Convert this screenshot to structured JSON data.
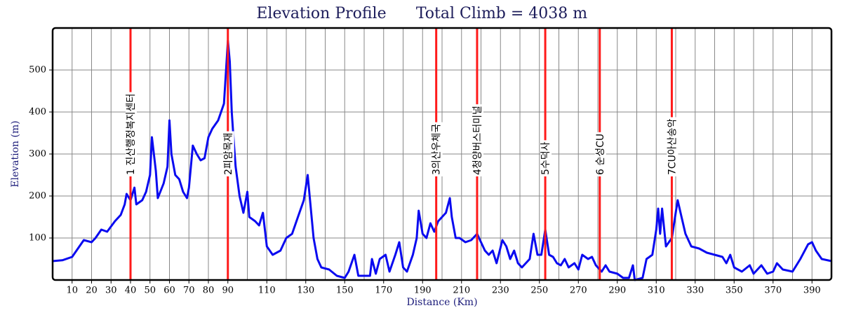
{
  "chart_data": {
    "type": "line",
    "title": "Elevation Profile",
    "subtitle": "Total Climb = 4038 m",
    "x_label": "Distance (Km)",
    "y_label": "Elevation (m)",
    "x": [
      0,
      5,
      10,
      13,
      16,
      20,
      22,
      25,
      28,
      32,
      35,
      37,
      38,
      40,
      42,
      43,
      46,
      48,
      50,
      51,
      53,
      54,
      57,
      59,
      60,
      61,
      63,
      65,
      67,
      69,
      70,
      72,
      74,
      76,
      78,
      80,
      82,
      85,
      88,
      90,
      91,
      92,
      93,
      94,
      96,
      98,
      100,
      101,
      104,
      106,
      108,
      110,
      113,
      117,
      120,
      123,
      126,
      129,
      131,
      132,
      134,
      136,
      138,
      142,
      146,
      150,
      152,
      155,
      157,
      163,
      164,
      166,
      168,
      171,
      173,
      176,
      178,
      180,
      182,
      185,
      187,
      188,
      190,
      192,
      194,
      196,
      198,
      200,
      202,
      204,
      205,
      207,
      209,
      212,
      215,
      218,
      220,
      222,
      224,
      226,
      228,
      231,
      233,
      235,
      237,
      239,
      241,
      245,
      247,
      249,
      251,
      253,
      255,
      257,
      259,
      261,
      263,
      265,
      268,
      270,
      272,
      275,
      277,
      279,
      282,
      284,
      286,
      290,
      293,
      296,
      298,
      299,
      303,
      305,
      308,
      310,
      311,
      312,
      313,
      315,
      318,
      320,
      321,
      323,
      325,
      328,
      332,
      336,
      340,
      344,
      346,
      348,
      350,
      354,
      358,
      360,
      364,
      367,
      370,
      372,
      375,
      380,
      384,
      388,
      390,
      392,
      395,
      400
    ],
    "values": [
      45,
      47,
      55,
      75,
      95,
      90,
      100,
      120,
      115,
      140,
      155,
      180,
      205,
      190,
      220,
      180,
      190,
      210,
      250,
      340,
      260,
      195,
      230,
      270,
      380,
      300,
      250,
      240,
      210,
      195,
      220,
      320,
      300,
      285,
      290,
      340,
      360,
      380,
      420,
      570,
      520,
      400,
      330,
      270,
      200,
      160,
      210,
      150,
      140,
      130,
      160,
      80,
      60,
      70,
      100,
      110,
      150,
      190,
      250,
      200,
      100,
      50,
      30,
      25,
      10,
      5,
      20,
      60,
      10,
      10,
      50,
      15,
      50,
      60,
      20,
      60,
      90,
      30,
      20,
      60,
      100,
      165,
      110,
      100,
      135,
      115,
      140,
      150,
      160,
      195,
      150,
      100,
      100,
      90,
      95,
      110,
      90,
      70,
      60,
      70,
      40,
      95,
      80,
      50,
      70,
      40,
      30,
      50,
      110,
      60,
      60,
      120,
      60,
      55,
      40,
      35,
      50,
      30,
      40,
      25,
      60,
      50,
      55,
      35,
      20,
      35,
      20,
      15,
      5,
      5,
      35,
      0,
      5,
      50,
      60,
      120,
      170,
      110,
      170,
      80,
      100,
      160,
      190,
      150,
      110,
      80,
      75,
      65,
      60,
      55,
      40,
      60,
      30,
      20,
      35,
      15,
      35,
      15,
      20,
      40,
      25,
      20,
      50,
      85,
      90,
      70,
      50,
      45
    ],
    "color": "#0a0af0",
    "xlim": [
      0,
      400
    ],
    "ylim": [
      0,
      600
    ],
    "xticks": [
      10,
      20,
      30,
      40,
      50,
      60,
      70,
      80,
      90,
      110,
      130,
      150,
      170,
      190,
      210,
      230,
      250,
      270,
      290,
      310,
      330,
      350,
      370,
      390
    ],
    "x_minor_ticks": [
      100,
      120,
      140,
      160,
      180,
      200,
      220,
      240,
      260,
      280,
      300,
      320,
      340,
      360,
      380
    ],
    "yticks": [
      100,
      200,
      300,
      400,
      500
    ],
    "grid": true,
    "marker_color": "#ff1a1a",
    "markers": [
      {
        "x": 40,
        "label": "1 진산행정복지센터"
      },
      {
        "x": 90,
        "label": "2피암목재"
      },
      {
        "x": 197,
        "label": "3의산우체국"
      },
      {
        "x": 218,
        "label": "4청양버스터미널"
      },
      {
        "x": 253,
        "label": "5수덕사"
      },
      {
        "x": 281,
        "label": "6 순성CU"
      },
      {
        "x": 318,
        "label": "7CU아산송악"
      }
    ]
  }
}
